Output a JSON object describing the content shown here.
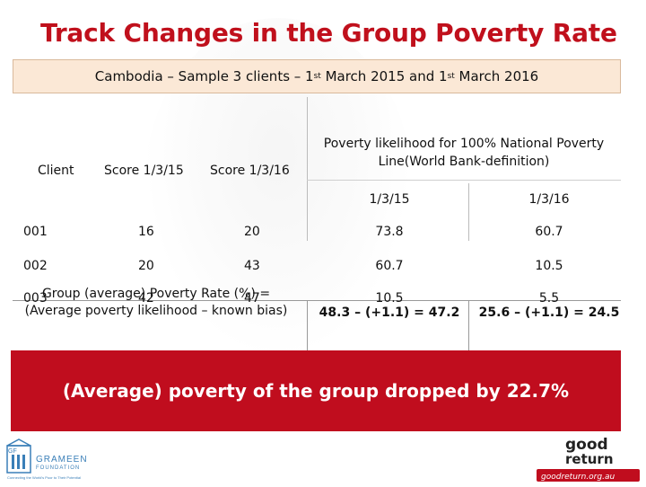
{
  "title": "Track Changes in the Group Poverty Rate",
  "table": {
    "heading_prefix": "Cambodia – Sample 3 clients – 1",
    "heading_sup1": "st",
    "heading_mid": " March 2015 and 1",
    "heading_sup2": "st",
    "heading_suffix": " March 2016",
    "col_client": "Client",
    "col_score1": "Score 1/3/15",
    "col_score2": "Score 1/3/16",
    "col_likelihood": "Poverty likelihood for 100% National Poverty Line(World Bank-definition)",
    "sub_date1": "1/3/15",
    "sub_date2": "1/3/16",
    "rows": [
      {
        "client": "001",
        "score1": "16",
        "score2": "20",
        "p1": "73.8",
        "p2": "60.7"
      },
      {
        "client": "002",
        "score1": "20",
        "score2": "43",
        "p1": "60.7",
        "p2": "10.5"
      },
      {
        "client": "003",
        "score1": "42",
        "score2": "47",
        "p1": "10.5",
        "p2": "5.5"
      }
    ],
    "group_label": "Group (average) Poverty Rate (%) = (Average poverty likelihood – known bias)",
    "group_val1": "48.3 – (+1.1) = 47.2",
    "group_val2": "25.6 – (+1.1) = 24.5"
  },
  "banner_text": "(Average) poverty of the group dropped by 22.7%",
  "logos": {
    "left_big": "GRAMEEN",
    "left_small": "FOUNDATION",
    "left_tagline": "Connecting the World's Poor to Their Potential",
    "left_gf": "GF",
    "right_main": "good",
    "right_sub": "return",
    "right_url": "goodreturn.org.au"
  }
}
